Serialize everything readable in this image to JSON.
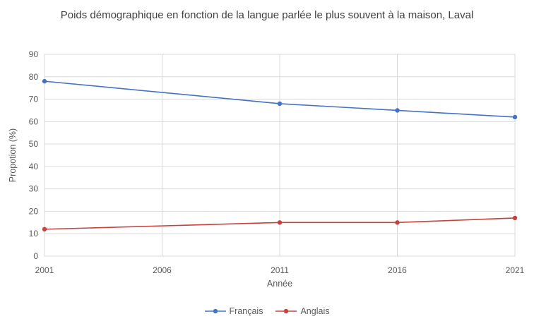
{
  "title": "Poids démographique en fonction de la langue parlée le plus souvent à la maison, Laval",
  "colors": {
    "grid": "#d9d9d9",
    "axis_text": "#595959",
    "title_text": "#404040",
    "background": "#ffffff",
    "francais_line": "#4472c4",
    "anglais_line": "#c8413c"
  },
  "chart_data": {
    "type": "line",
    "x": [
      2001,
      2011,
      2016,
      2021
    ],
    "x_axis": {
      "label": "Année",
      "ticks": [
        2001,
        2006,
        2011,
        2016,
        2021
      ],
      "range": [
        2001,
        2021
      ]
    },
    "y_axis": {
      "label": "Propotion (%)",
      "ticks": [
        0,
        10,
        20,
        30,
        40,
        50,
        60,
        70,
        80,
        90
      ],
      "range": [
        0,
        90
      ]
    },
    "series": [
      {
        "name": "Français",
        "color": "#4472c4",
        "values": [
          78,
          68,
          65,
          62
        ]
      },
      {
        "name": "Anglais",
        "color": "#c8413c",
        "values": [
          12,
          15,
          15,
          17
        ]
      }
    ],
    "grid": true,
    "marker": "circle",
    "legend_position": "bottom"
  }
}
